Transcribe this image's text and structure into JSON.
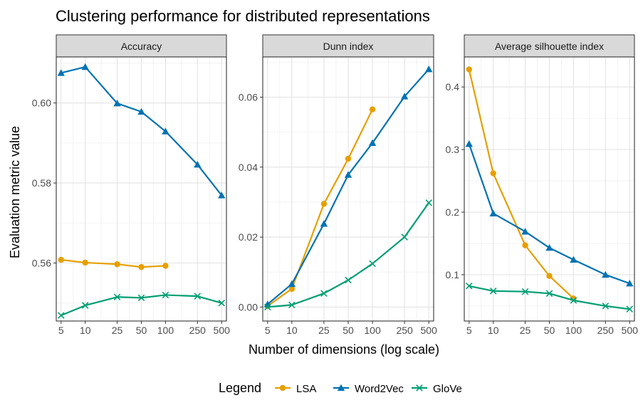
{
  "chart_data": {
    "type": "line",
    "title": "Clustering performance for distributed representations",
    "xlabel": "Number of dimensions (log scale)",
    "ylabel": "Evaluation metric value",
    "x_scale": "log",
    "x_ticks": [
      5,
      10,
      25,
      50,
      100,
      250,
      500
    ],
    "legend": {
      "title": "Legend",
      "position": "bottom",
      "entries": [
        "LSA",
        "Word2Vec",
        "GloVe"
      ]
    },
    "series_styles": [
      {
        "name": "LSA",
        "color": "#E69F00",
        "marker": "circle"
      },
      {
        "name": "Word2Vec",
        "color": "#0072B2",
        "marker": "triangle"
      },
      {
        "name": "GloVe",
        "color": "#009E73",
        "marker": "cross"
      }
    ],
    "panels": [
      {
        "title": "Accuracy",
        "ylim": [
          0.5455,
          0.6115
        ],
        "y_ticks": [
          0.56,
          0.58,
          0.6
        ],
        "y_tick_labels": [
          "0.56",
          "0.58",
          "0.60"
        ],
        "series": [
          {
            "name": "LSA",
            "x": [
              5,
              10,
              25,
              50,
              100
            ],
            "values": [
              0.5608,
              0.5601,
              0.5597,
              0.559,
              0.5593
            ]
          },
          {
            "name": "Word2Vec",
            "x": [
              5,
              10,
              25,
              50,
              100,
              250,
              500
            ],
            "values": [
              0.6075,
              0.609,
              0.5999,
              0.5978,
              0.5929,
              0.5846,
              0.5769
            ]
          },
          {
            "name": "GloVe",
            "x": [
              5,
              10,
              25,
              50,
              100,
              250,
              500
            ],
            "values": [
              0.5469,
              0.5494,
              0.5515,
              0.5513,
              0.552,
              0.5517,
              0.55
            ]
          }
        ]
      },
      {
        "title": "Dunn index",
        "ylim": [
          -0.004,
          0.0715
        ],
        "y_ticks": [
          0.0,
          0.02,
          0.04,
          0.06
        ],
        "y_tick_labels": [
          "0.00",
          "0.02",
          "0.04",
          "0.06"
        ],
        "series": [
          {
            "name": "LSA",
            "x": [
              5,
              10,
              25,
              50,
              100
            ],
            "values": [
              0.0003,
              0.0052,
              0.0295,
              0.0424,
              0.0565
            ]
          },
          {
            "name": "Word2Vec",
            "x": [
              5,
              10,
              25,
              50,
              100,
              250,
              500
            ],
            "values": [
              0.0008,
              0.0066,
              0.0238,
              0.0378,
              0.0469,
              0.0602,
              0.068
            ]
          },
          {
            "name": "GloVe",
            "x": [
              5,
              10,
              25,
              50,
              100,
              250,
              500
            ],
            "values": [
              0.0,
              0.0006,
              0.0039,
              0.0077,
              0.0124,
              0.02,
              0.0298
            ]
          }
        ]
      },
      {
        "title": "Average silhouette index",
        "ylim": [
          0.026,
          0.448
        ],
        "y_ticks": [
          0.1,
          0.2,
          0.3,
          0.4
        ],
        "y_tick_labels": [
          "0.1",
          "0.2",
          "0.3",
          "0.4"
        ],
        "series": [
          {
            "name": "LSA",
            "x": [
              5,
              10,
              25,
              50,
              100
            ],
            "values": [
              0.428,
              0.262,
              0.147,
              0.098,
              0.062
            ]
          },
          {
            "name": "Word2Vec",
            "x": [
              5,
              10,
              25,
              50,
              100,
              250,
              500
            ],
            "values": [
              0.309,
              0.198,
              0.169,
              0.143,
              0.124,
              0.1,
              0.086
            ]
          },
          {
            "name": "GloVe",
            "x": [
              5,
              10,
              25,
              50,
              100,
              250,
              500
            ],
            "values": [
              0.082,
              0.074,
              0.073,
              0.07,
              0.059,
              0.05,
              0.045
            ]
          }
        ]
      }
    ]
  }
}
